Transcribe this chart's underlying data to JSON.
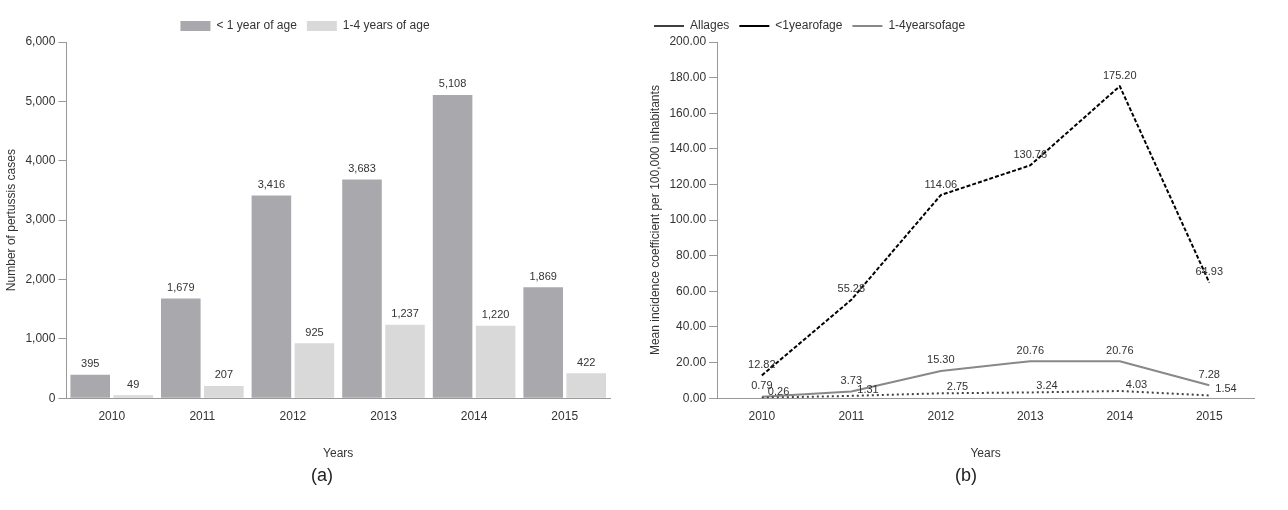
{
  "chart_data": [
    {
      "type": "bar",
      "xlabel": "Years",
      "ylabel": "Number of pertussis cases",
      "categories": [
        "2010",
        "2011",
        "2012",
        "2013",
        "2014",
        "2015"
      ],
      "series": [
        {
          "name": "< 1 year of age",
          "color": "#a9a9ad",
          "values": [
            395,
            1679,
            3416,
            3683,
            5108,
            1869
          ],
          "value_labels": [
            "395",
            "1,679",
            "3,416",
            "3,683",
            "5,108",
            "1,869"
          ]
        },
        {
          "name": "1-4 years of age",
          "color": "#d9d9d9",
          "values": [
            49,
            207,
            925,
            1237,
            1220,
            422
          ],
          "value_labels": [
            "49",
            "207",
            "925",
            "1,237",
            "1,220",
            "422"
          ]
        }
      ],
      "ylim": [
        0,
        6000
      ],
      "yticks": [
        0,
        {
          "value": 1000,
          "label": "1,000"
        },
        {
          "value": 2000,
          "label": "2,000"
        },
        {
          "value": 3000,
          "label": "3,000"
        },
        {
          "value": 4000,
          "label": "4,000"
        },
        {
          "value": 5000,
          "label": "5,000"
        },
        {
          "value": 6000,
          "label": "6,000"
        }
      ],
      "grid": false,
      "legend": "top",
      "annotations": [
        "(a)"
      ]
    },
    {
      "type": "line",
      "xlabel": "Years",
      "ylabel": "Mean incidence coefficient per 100,000 inhabitants",
      "categories": [
        "2010",
        "2011",
        "2012",
        "2013",
        "2014",
        "2015"
      ],
      "series": [
        {
          "name": "Allages",
          "color": "#404040",
          "line_style": "dotted",
          "values": [
            0.26,
            1.31,
            2.75,
            3.24,
            4.03,
            1.54
          ],
          "value_labels": [
            "0.26",
            "1.31",
            "2.75",
            "3.24",
            "4.03",
            "1.54"
          ]
        },
        {
          "name": "<1yearofage",
          "color": "#000000",
          "line_style": "dashed",
          "values": [
            12.82,
            55.28,
            114.06,
            130.76,
            175.2,
            64.93
          ],
          "value_labels": [
            "12.82",
            "55.28",
            "114.06",
            "130.76",
            "175.20",
            "64.93"
          ]
        },
        {
          "name": "1-4yearsofage",
          "color": "#888888",
          "line_style": "solid",
          "values": [
            0.79,
            3.73,
            15.3,
            20.76,
            20.76,
            7.28
          ],
          "value_labels": [
            "0.79",
            "3.73",
            "15.30",
            "20.76",
            "20.76",
            "7.28"
          ]
        }
      ],
      "ylim": [
        0,
        200
      ],
      "yticks": [
        {
          "value": 0,
          "label": "0.00"
        },
        {
          "value": 20,
          "label": "20.00"
        },
        {
          "value": 40,
          "label": "40.00"
        },
        {
          "value": 60,
          "label": "60.00"
        },
        {
          "value": 80,
          "label": "80.00"
        },
        {
          "value": 100,
          "label": "100.00"
        },
        {
          "value": 120,
          "label": "120.00"
        },
        {
          "value": 140,
          "label": "140.00"
        },
        {
          "value": 160,
          "label": "160.00"
        },
        {
          "value": 180,
          "label": "180.00"
        },
        {
          "value": 200,
          "label": "200.00"
        }
      ],
      "grid": false,
      "legend": "top left",
      "marker": "none",
      "annotations": [
        "(b)"
      ]
    }
  ]
}
